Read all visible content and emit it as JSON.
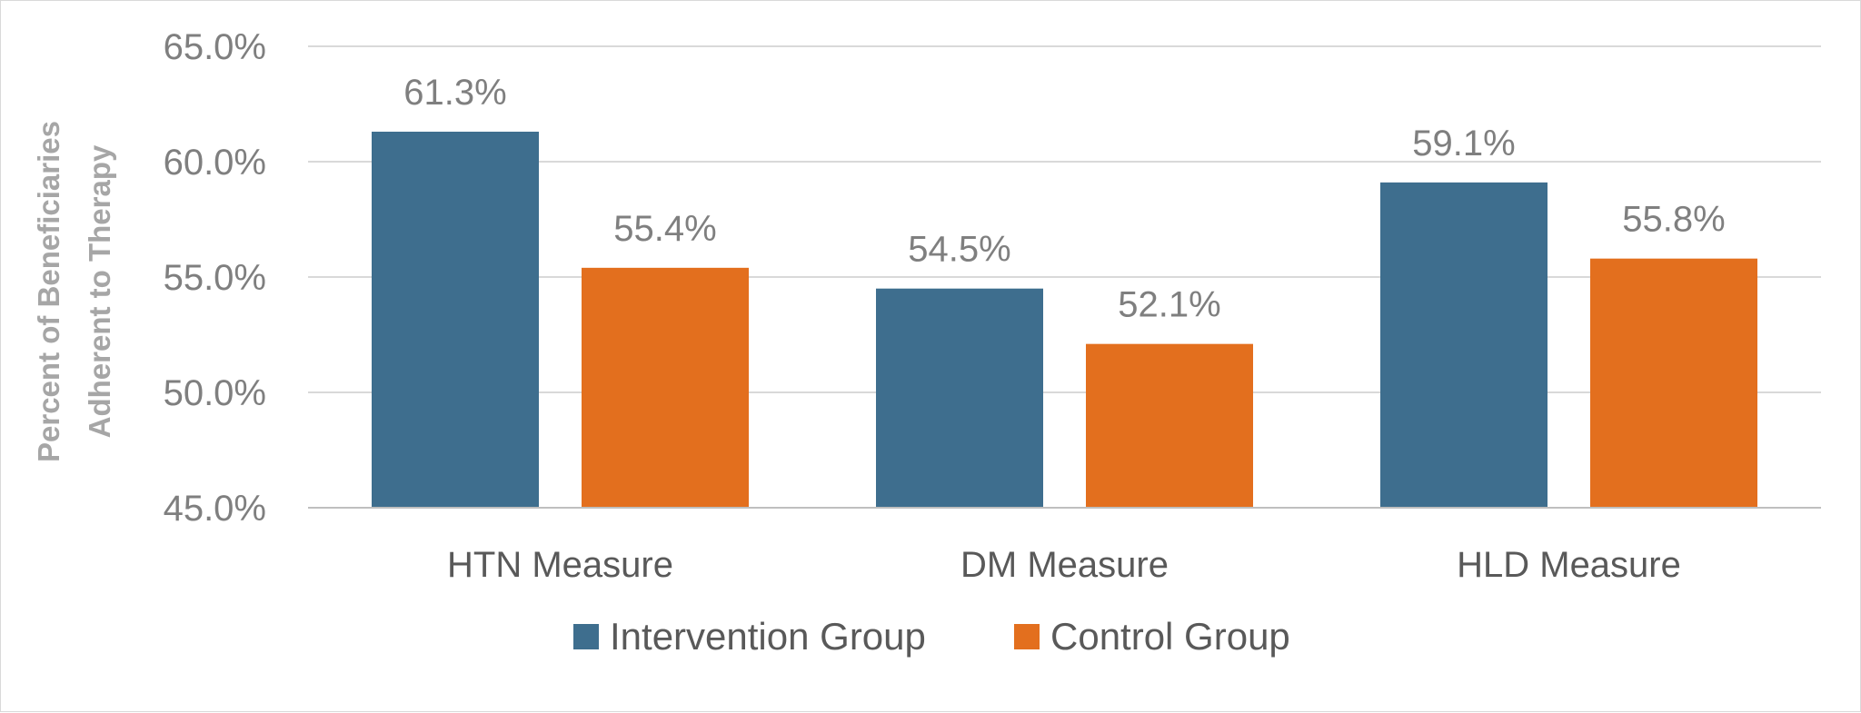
{
  "chart_data": {
    "type": "bar",
    "title": "",
    "xlabel": "",
    "ylabel": [
      "Percent of Beneficiaries",
      "Adherent to Therapy"
    ],
    "categories": [
      "HTN Measure",
      "DM Measure",
      "HLD Measure"
    ],
    "series": [
      {
        "name": "Intervention Group",
        "color": "#3e6e8e",
        "values": [
          61.3,
          54.5,
          59.1
        ],
        "labels": [
          "61.3%",
          "54.5%",
          "59.1%"
        ]
      },
      {
        "name": "Control Group",
        "color": "#e36f1e",
        "values": [
          55.4,
          52.1,
          55.8
        ],
        "labels": [
          "55.4%",
          "52.1%",
          "55.8%"
        ]
      }
    ],
    "ylim": [
      45,
      65
    ],
    "yticks": [
      45,
      50,
      55,
      60,
      65
    ],
    "ytick_labels": [
      "45.0%",
      "50.0%",
      "55.0%",
      "60.0%",
      "65.0%"
    ],
    "grid": true,
    "legend_position": "bottom",
    "gridline_color": "#d9d9d9",
    "axis_color": "#bfbfbf"
  }
}
